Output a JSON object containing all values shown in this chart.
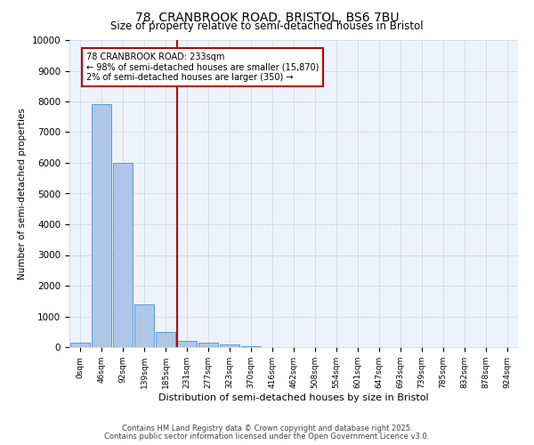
{
  "title_line1": "78, CRANBROOK ROAD, BRISTOL, BS6 7BU",
  "title_line2": "Size of property relative to semi-detached houses in Bristol",
  "xlabel": "Distribution of semi-detached houses by size in Bristol",
  "ylabel": "Number of semi-detached properties",
  "bar_labels": [
    "0sqm",
    "46sqm",
    "92sqm",
    "139sqm",
    "185sqm",
    "231sqm",
    "277sqm",
    "323sqm",
    "370sqm",
    "416sqm",
    "462sqm",
    "508sqm",
    "554sqm",
    "601sqm",
    "647sqm",
    "693sqm",
    "739sqm",
    "785sqm",
    "832sqm",
    "878sqm",
    "924sqm"
  ],
  "bar_values": [
    150,
    7900,
    6000,
    1400,
    500,
    200,
    150,
    80,
    20,
    5,
    2,
    1,
    0,
    0,
    0,
    0,
    0,
    0,
    0,
    0,
    0
  ],
  "bar_color": "#aec6e8",
  "bar_edge_color": "#5b9bd5",
  "vline_x_index": 5,
  "vline_color": "#c00000",
  "annotation_lines": [
    "78 CRANBROOK ROAD: 233sqm",
    "← 98% of semi-detached houses are smaller (15,870)",
    "2% of semi-detached houses are larger (350) →"
  ],
  "annotation_box_color": "#c00000",
  "ylim": [
    0,
    10000
  ],
  "yticks": [
    0,
    1000,
    2000,
    3000,
    4000,
    5000,
    6000,
    7000,
    8000,
    9000,
    10000
  ],
  "grid_color": "#d0d8e8",
  "bg_color": "#eef2fa",
  "footer_line1": "Contains HM Land Registry data © Crown copyright and database right 2025.",
  "footer_line2": "Contains public sector information licensed under the Open Government Licence v3.0."
}
